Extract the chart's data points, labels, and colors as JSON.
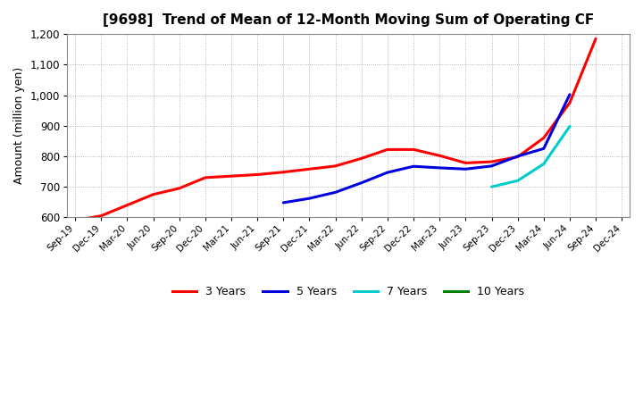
{
  "title": "[9698]  Trend of Mean of 12-Month Moving Sum of Operating CF",
  "ylabel": "Amount (million yen)",
  "ylim": [
    600,
    1200
  ],
  "yticks": [
    600,
    700,
    800,
    900,
    1000,
    1100,
    1200
  ],
  "background_color": "#ffffff",
  "grid_color": "#999999",
  "x_labels": [
    "Sep-19",
    "Dec-19",
    "Mar-20",
    "Jun-20",
    "Sep-20",
    "Dec-20",
    "Mar-21",
    "Jun-21",
    "Sep-21",
    "Dec-21",
    "Mar-22",
    "Jun-22",
    "Sep-22",
    "Dec-22",
    "Mar-23",
    "Jun-23",
    "Sep-23",
    "Dec-23",
    "Mar-24",
    "Jun-24",
    "Sep-24",
    "Dec-24"
  ],
  "series": {
    "3 Years": {
      "color": "#ff0000",
      "data": [
        [
          0,
          590
        ],
        [
          1,
          605
        ],
        [
          2,
          640
        ],
        [
          3,
          675
        ],
        [
          4,
          695
        ],
        [
          5,
          730
        ],
        [
          6,
          735
        ],
        [
          7,
          740
        ],
        [
          8,
          748
        ],
        [
          9,
          758
        ],
        [
          10,
          768
        ],
        [
          11,
          793
        ],
        [
          12,
          822
        ],
        [
          13,
          822
        ],
        [
          14,
          802
        ],
        [
          15,
          778
        ],
        [
          16,
          782
        ],
        [
          17,
          798
        ],
        [
          18,
          860
        ],
        [
          19,
          975
        ],
        [
          20,
          1185
        ]
      ]
    },
    "5 Years": {
      "color": "#0000dd",
      "data": [
        [
          8,
          648
        ],
        [
          9,
          662
        ],
        [
          10,
          682
        ],
        [
          11,
          713
        ],
        [
          12,
          747
        ],
        [
          13,
          767
        ],
        [
          14,
          762
        ],
        [
          15,
          758
        ],
        [
          16,
          768
        ],
        [
          17,
          800
        ],
        [
          18,
          825
        ],
        [
          19,
          1002
        ]
      ]
    },
    "7 Years": {
      "color": "#00cccc",
      "data": [
        [
          16,
          700
        ],
        [
          17,
          720
        ],
        [
          18,
          775
        ],
        [
          19,
          898
        ]
      ]
    },
    "10 Years": {
      "color": "#008000",
      "data": []
    }
  },
  "legend_labels": [
    "3 Years",
    "5 Years",
    "7 Years",
    "10 Years"
  ],
  "legend_colors": [
    "#ff0000",
    "#0000dd",
    "#00cccc",
    "#008000"
  ]
}
